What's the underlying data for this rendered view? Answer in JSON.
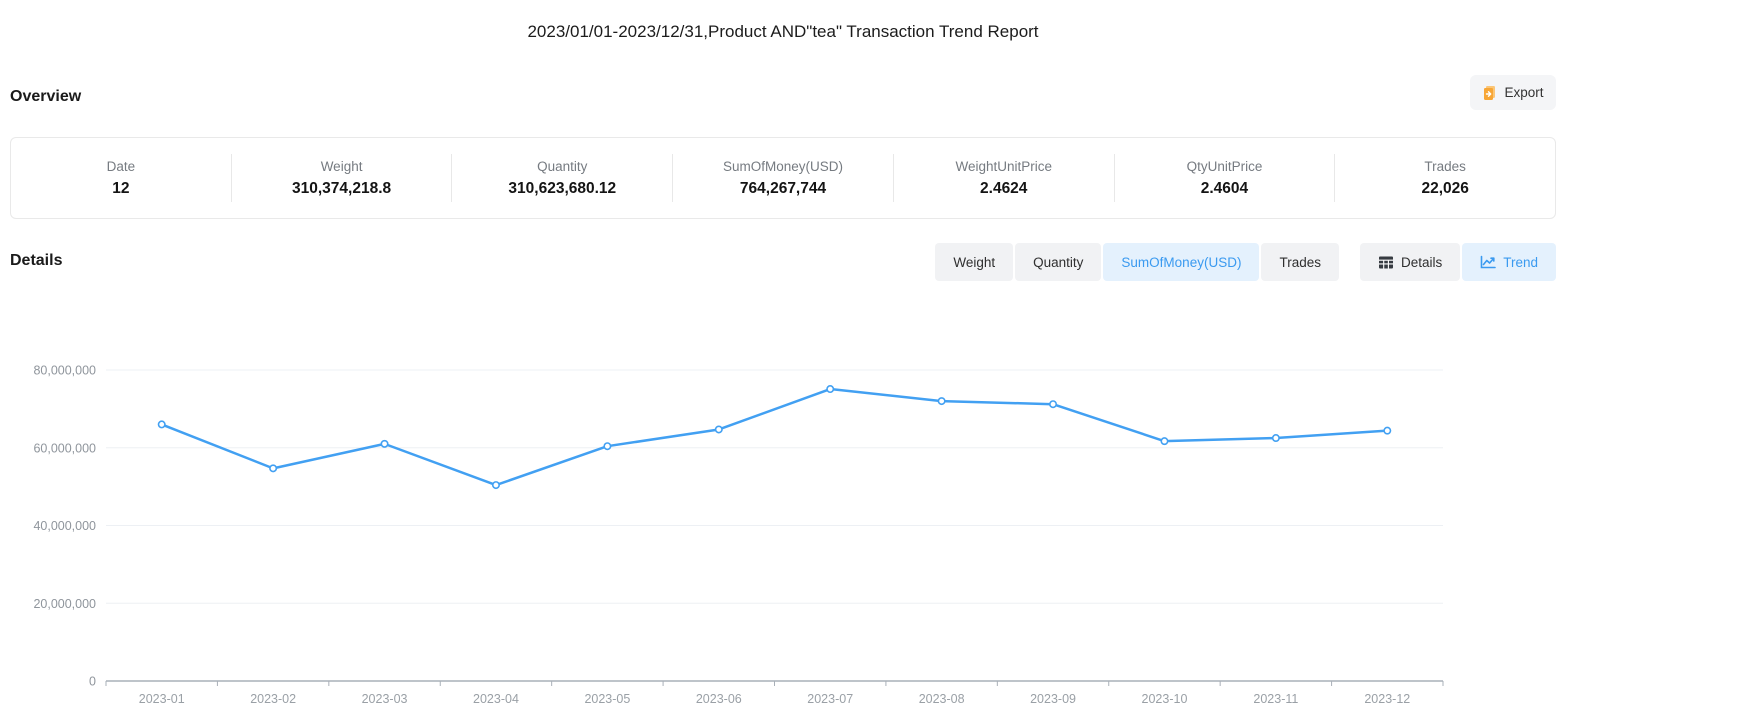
{
  "title": "2023/01/01-2023/12/31,Product AND\"tea\" Transaction Trend Report",
  "overview": {
    "heading": "Overview",
    "export_label": "Export",
    "stats": [
      {
        "label": "Date",
        "value": "12"
      },
      {
        "label": "Weight",
        "value": "310,374,218.8"
      },
      {
        "label": "Quantity",
        "value": "310,623,680.12"
      },
      {
        "label": "SumOfMoney(USD)",
        "value": "764,267,744"
      },
      {
        "label": "WeightUnitPrice",
        "value": "2.4624"
      },
      {
        "label": "QtyUnitPrice",
        "value": "2.4604"
      },
      {
        "label": "Trades",
        "value": "22,026"
      }
    ]
  },
  "details": {
    "heading": "Details",
    "metric_tabs": [
      {
        "label": "Weight",
        "active": false
      },
      {
        "label": "Quantity",
        "active": false
      },
      {
        "label": "SumOfMoney(USD)",
        "active": true
      },
      {
        "label": "Trades",
        "active": false
      }
    ],
    "view_tabs": [
      {
        "label": "Details",
        "icon": "table-icon",
        "active": false
      },
      {
        "label": "Trend",
        "icon": "trend-icon",
        "active": true
      }
    ]
  },
  "colors": {
    "accent_blue": "#3a9af0",
    "accent_blue_bg": "#e4f1fd",
    "chart_line": "#42a0f2",
    "marker_fill": "#ffffff",
    "grid_line": "#edf0f4",
    "axis_line": "#a9b0b8",
    "y_tick_label": "#8f959c",
    "x_tick_label": "#9aa0a6",
    "export_icon_orange": "#f7a636"
  },
  "chart_data": {
    "type": "line",
    "title": "",
    "xlabel": "",
    "ylabel": "",
    "x": [
      "2023-01",
      "2023-02",
      "2023-03",
      "2023-04",
      "2023-05",
      "2023-06",
      "2023-07",
      "2023-08",
      "2023-09",
      "2023-10",
      "2023-11",
      "2023-12"
    ],
    "series": [
      {
        "name": "SumOfMoney(USD)",
        "values": [
          66000000,
          54700000,
          61000000,
          50400000,
          60400000,
          64700000,
          75100000,
          72000000,
          71200000,
          61700000,
          62500000,
          64400000
        ]
      }
    ],
    "ylim": [
      0,
      80000000
    ],
    "yticks": [
      0,
      20000000,
      40000000,
      60000000,
      80000000
    ],
    "grid": true,
    "legend": false
  }
}
